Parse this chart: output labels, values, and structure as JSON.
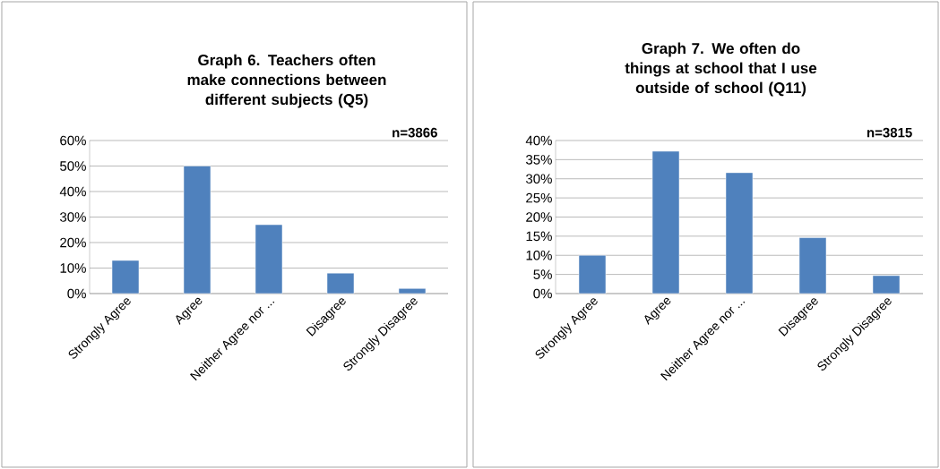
{
  "chart_data": [
    {
      "type": "bar",
      "title": "Graph 6. Teachers often make connections between different subjects (Q5)",
      "annotations": [
        "n=3866"
      ],
      "categories": [
        "Strongly Agree",
        "Agree",
        "Neither Agree nor ...",
        "Disagree",
        "Strongly Disagree"
      ],
      "values": [
        13,
        50,
        27,
        8,
        2
      ],
      "color": "#4f81bd",
      "ylim": [
        0,
        60
      ],
      "yticks": [
        {
          "value": 0,
          "label": "0%"
        },
        {
          "value": 10,
          "label": "10%"
        },
        {
          "value": 20,
          "label": "20%"
        },
        {
          "value": 30,
          "label": "30%"
        },
        {
          "value": 40,
          "label": "40%"
        },
        {
          "value": 50,
          "label": "50%"
        },
        {
          "value": 60,
          "label": "60%"
        }
      ],
      "grid": "y"
    },
    {
      "type": "bar",
      "title": "Graph 7. We often do things at school that I use outside of school (Q11)",
      "annotations": [
        "n=3815"
      ],
      "categories": [
        "Strongly Agree",
        "Agree",
        "Neither Agree nor ...",
        "Disagree",
        "Strongly Disagree"
      ],
      "values": [
        10,
        37.2,
        31.6,
        14.6,
        4.7
      ],
      "color": "#4f81bd",
      "ylim": [
        0,
        40
      ],
      "yticks": [
        {
          "value": 0,
          "label": "0%"
        },
        {
          "value": 5,
          "label": "5%"
        },
        {
          "value": 10,
          "label": "10%"
        },
        {
          "value": 15,
          "label": "15%"
        },
        {
          "value": 20,
          "label": "20%"
        },
        {
          "value": 25,
          "label": "25%"
        },
        {
          "value": 30,
          "label": "30%"
        },
        {
          "value": 35,
          "label": "35%"
        },
        {
          "value": 40,
          "label": "40%"
        }
      ],
      "grid": "y"
    }
  ]
}
